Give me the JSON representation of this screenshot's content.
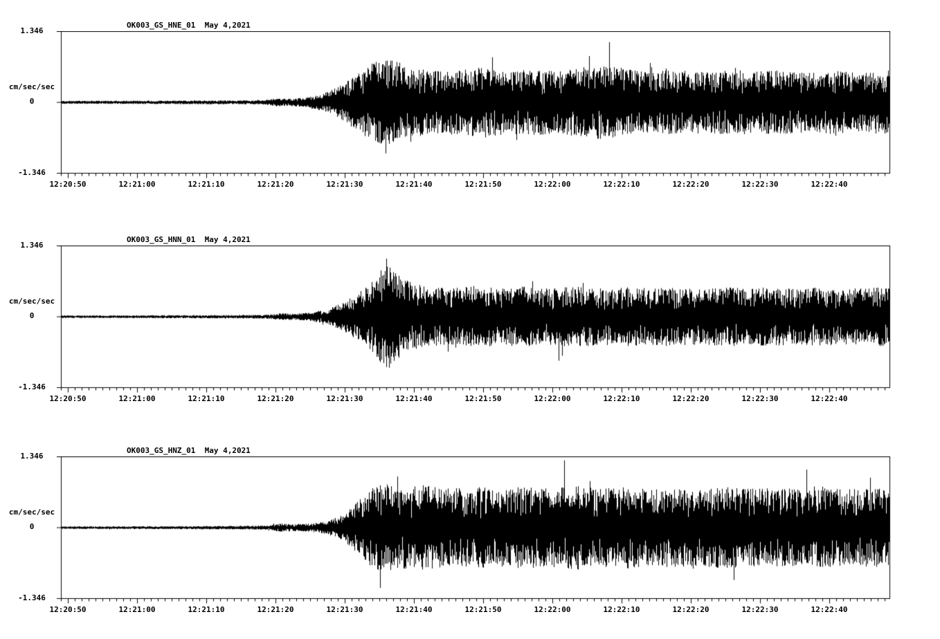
{
  "page": {
    "background_color": "#ffffff",
    "trace_color": "#000000"
  },
  "axis": {
    "ymax_label": "1.346",
    "ymid_label": "0",
    "ymin_label": "-1.346",
    "unit_label": "cm/sec/sec"
  },
  "chart_data": [
    {
      "type": "line",
      "title": "OK003_GS_HNE_01  May 4,2021",
      "station_channel": "OK003_GS_HNE_01",
      "date": "May 4,2021",
      "ylabel": "cm/sec/sec",
      "ylim": [
        -1.346,
        1.346
      ],
      "y_tick_labels": [
        "1.346",
        "0",
        "-1.346"
      ],
      "x_axis": {
        "start": "12:20:49",
        "end": "12:22:49",
        "major_tick_interval_s": 10,
        "minor_tick_interval_s": 1
      },
      "x_tick_labels": [
        "12:20:50",
        "12:21:00",
        "12:21:10",
        "12:21:20",
        "12:21:30",
        "12:21:40",
        "12:21:50",
        "12:22:00",
        "12:22:10",
        "12:22:20",
        "12:22:30",
        "12:22:40"
      ],
      "envelope": [
        [
          0,
          0.022
        ],
        [
          0.1,
          0.024
        ],
        [
          0.2,
          0.028
        ],
        [
          0.245,
          0.03
        ],
        [
          0.26,
          0.06
        ],
        [
          0.275,
          0.05
        ],
        [
          0.295,
          0.07
        ],
        [
          0.315,
          0.12
        ],
        [
          0.335,
          0.22
        ],
        [
          0.355,
          0.38
        ],
        [
          0.375,
          0.55
        ],
        [
          0.39,
          0.62
        ],
        [
          0.405,
          0.58
        ],
        [
          0.42,
          0.5
        ],
        [
          0.45,
          0.44
        ],
        [
          0.48,
          0.46
        ],
        [
          0.51,
          0.5
        ],
        [
          0.54,
          0.44
        ],
        [
          0.57,
          0.47
        ],
        [
          0.6,
          0.44
        ],
        [
          0.63,
          0.5
        ],
        [
          0.66,
          0.52
        ],
        [
          0.69,
          0.46
        ],
        [
          0.72,
          0.44
        ],
        [
          0.75,
          0.46
        ],
        [
          0.78,
          0.43
        ],
        [
          0.81,
          0.46
        ],
        [
          0.84,
          0.44
        ],
        [
          0.87,
          0.46
        ],
        [
          0.9,
          0.42
        ],
        [
          0.93,
          0.45
        ],
        [
          0.96,
          0.42
        ],
        [
          1,
          0.46
        ]
      ],
      "spikes": [
        {
          "x": 0.662,
          "amp": 0.85
        },
        {
          "x": 0.392,
          "amp": -0.72
        }
      ]
    },
    {
      "type": "line",
      "title": "OK003_GS_HNN_01  May 4,2021",
      "station_channel": "OK003_GS_HNN_01",
      "date": "May 4,2021",
      "ylabel": "cm/sec/sec",
      "ylim": [
        -1.346,
        1.346
      ],
      "y_tick_labels": [
        "1.346",
        "0",
        "-1.346"
      ],
      "x_axis": {
        "start": "12:20:49",
        "end": "12:22:49",
        "major_tick_interval_s": 10,
        "minor_tick_interval_s": 1
      },
      "x_tick_labels": [
        "12:20:50",
        "12:21:00",
        "12:21:10",
        "12:21:20",
        "12:21:30",
        "12:21:40",
        "12:21:50",
        "12:22:00",
        "12:22:10",
        "12:22:20",
        "12:22:30",
        "12:22:40"
      ],
      "envelope": [
        [
          0,
          0.018
        ],
        [
          0.1,
          0.02
        ],
        [
          0.2,
          0.024
        ],
        [
          0.25,
          0.028
        ],
        [
          0.265,
          0.05
        ],
        [
          0.28,
          0.045
        ],
        [
          0.3,
          0.06
        ],
        [
          0.32,
          0.1
        ],
        [
          0.34,
          0.2
        ],
        [
          0.36,
          0.35
        ],
        [
          0.38,
          0.55
        ],
        [
          0.393,
          0.78
        ],
        [
          0.4,
          0.65
        ],
        [
          0.415,
          0.52
        ],
        [
          0.44,
          0.42
        ],
        [
          0.47,
          0.4
        ],
        [
          0.5,
          0.44
        ],
        [
          0.53,
          0.4
        ],
        [
          0.56,
          0.43
        ],
        [
          0.59,
          0.4
        ],
        [
          0.62,
          0.43
        ],
        [
          0.65,
          0.4
        ],
        [
          0.68,
          0.42
        ],
        [
          0.71,
          0.4
        ],
        [
          0.74,
          0.42
        ],
        [
          0.77,
          0.39
        ],
        [
          0.8,
          0.42
        ],
        [
          0.83,
          0.4
        ],
        [
          0.86,
          0.42
        ],
        [
          0.89,
          0.4
        ],
        [
          0.92,
          0.42
        ],
        [
          0.95,
          0.4
        ],
        [
          1,
          0.42
        ]
      ],
      "spikes": [
        {
          "x": 0.393,
          "amp": 0.82
        },
        {
          "x": 0.396,
          "amp": -0.72
        },
        {
          "x": 0.601,
          "amp": -0.62
        }
      ]
    },
    {
      "type": "line",
      "title": "OK003_GS_HNZ_01  May 4,2021",
      "station_channel": "OK003_GS_HNZ_01",
      "date": "May 4,2021",
      "ylabel": "cm/sec/sec",
      "ylim": [
        -1.346,
        1.346
      ],
      "y_tick_labels": [
        "1.346",
        "0",
        "-1.346"
      ],
      "x_axis": {
        "start": "12:20:49",
        "end": "12:22:49",
        "major_tick_interval_s": 10,
        "minor_tick_interval_s": 1
      },
      "x_tick_labels": [
        "12:20:50",
        "12:21:00",
        "12:21:10",
        "12:21:20",
        "12:21:30",
        "12:21:40",
        "12:21:50",
        "12:22:00",
        "12:22:10",
        "12:22:20",
        "12:22:30",
        "12:22:40"
      ],
      "envelope": [
        [
          0,
          0.018
        ],
        [
          0.1,
          0.02
        ],
        [
          0.2,
          0.024
        ],
        [
          0.25,
          0.03
        ],
        [
          0.265,
          0.06
        ],
        [
          0.28,
          0.05
        ],
        [
          0.3,
          0.06
        ],
        [
          0.32,
          0.09
        ],
        [
          0.34,
          0.18
        ],
        [
          0.36,
          0.4
        ],
        [
          0.375,
          0.58
        ],
        [
          0.39,
          0.62
        ],
        [
          0.41,
          0.58
        ],
        [
          0.44,
          0.6
        ],
        [
          0.47,
          0.55
        ],
        [
          0.5,
          0.58
        ],
        [
          0.53,
          0.55
        ],
        [
          0.56,
          0.58
        ],
        [
          0.59,
          0.55
        ],
        [
          0.62,
          0.6
        ],
        [
          0.65,
          0.55
        ],
        [
          0.68,
          0.58
        ],
        [
          0.71,
          0.54
        ],
        [
          0.74,
          0.56
        ],
        [
          0.77,
          0.54
        ],
        [
          0.8,
          0.58
        ],
        [
          0.83,
          0.55
        ],
        [
          0.86,
          0.56
        ],
        [
          0.89,
          0.55
        ],
        [
          0.92,
          0.58
        ],
        [
          0.95,
          0.54
        ],
        [
          1,
          0.56
        ]
      ],
      "spikes": [
        {
          "x": 0.607,
          "amp": 0.95
        },
        {
          "x": 0.385,
          "amp": -0.85
        },
        {
          "x": 0.9,
          "amp": 0.82
        }
      ]
    }
  ]
}
